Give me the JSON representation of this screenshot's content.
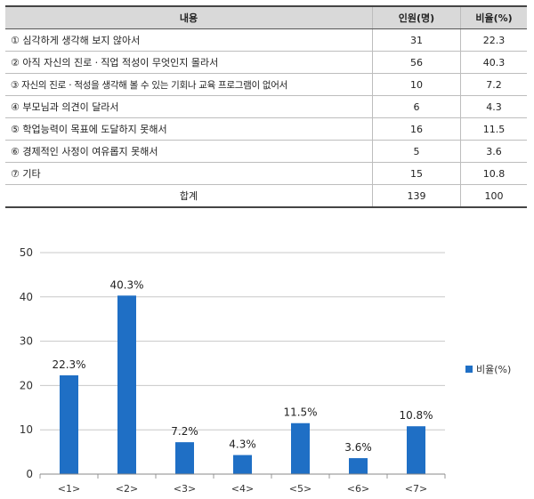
{
  "table": {
    "headers": [
      "내용",
      "인원(명)",
      "비율(%)"
    ],
    "rows": [
      [
        "① 심각하게 생각해 보지 않아서",
        "31",
        "22.3"
      ],
      [
        "② 아직 자신의 진로ㆍ직업 적성이 무엇인지 몰라서",
        "56",
        "40.3"
      ],
      [
        "③ 자신의 진로ㆍ적성을 생각해 볼 수 있는 기회나 교육 프로그램이 없어서",
        "10",
        "7.2"
      ],
      [
        "④ 부모님과 의견이 달라서",
        "6",
        "4.3"
      ],
      [
        "⑤ 학업능력이 목표에 도달하지 못해서",
        "16",
        "11.5"
      ],
      [
        "⑥ 경제적인 사정이 여유롭지 못해서",
        "5",
        "3.6"
      ],
      [
        "⑦ 기타",
        "15",
        "10.8"
      ]
    ],
    "total": [
      "합계",
      "139",
      "100"
    ]
  },
  "chart_data": {
    "type": "bar",
    "categories": [
      "<1>",
      "<2>",
      "<3>",
      "<4>",
      "<5>",
      "<6>",
      "<7>"
    ],
    "series": [
      {
        "name": "비율(%)",
        "values": [
          22.3,
          40.3,
          7.2,
          4.3,
          11.5,
          3.6,
          10.8
        ],
        "color": "#1f6fc5"
      }
    ],
    "data_labels": [
      "22.3%",
      "40.3%",
      "7.2%",
      "4.3%",
      "11.5%",
      "3.6%",
      "10.8%"
    ],
    "ylim": [
      0,
      50
    ],
    "yticks": [
      0,
      10,
      20,
      30,
      40,
      50
    ],
    "grid": true,
    "legend_position": "right"
  }
}
